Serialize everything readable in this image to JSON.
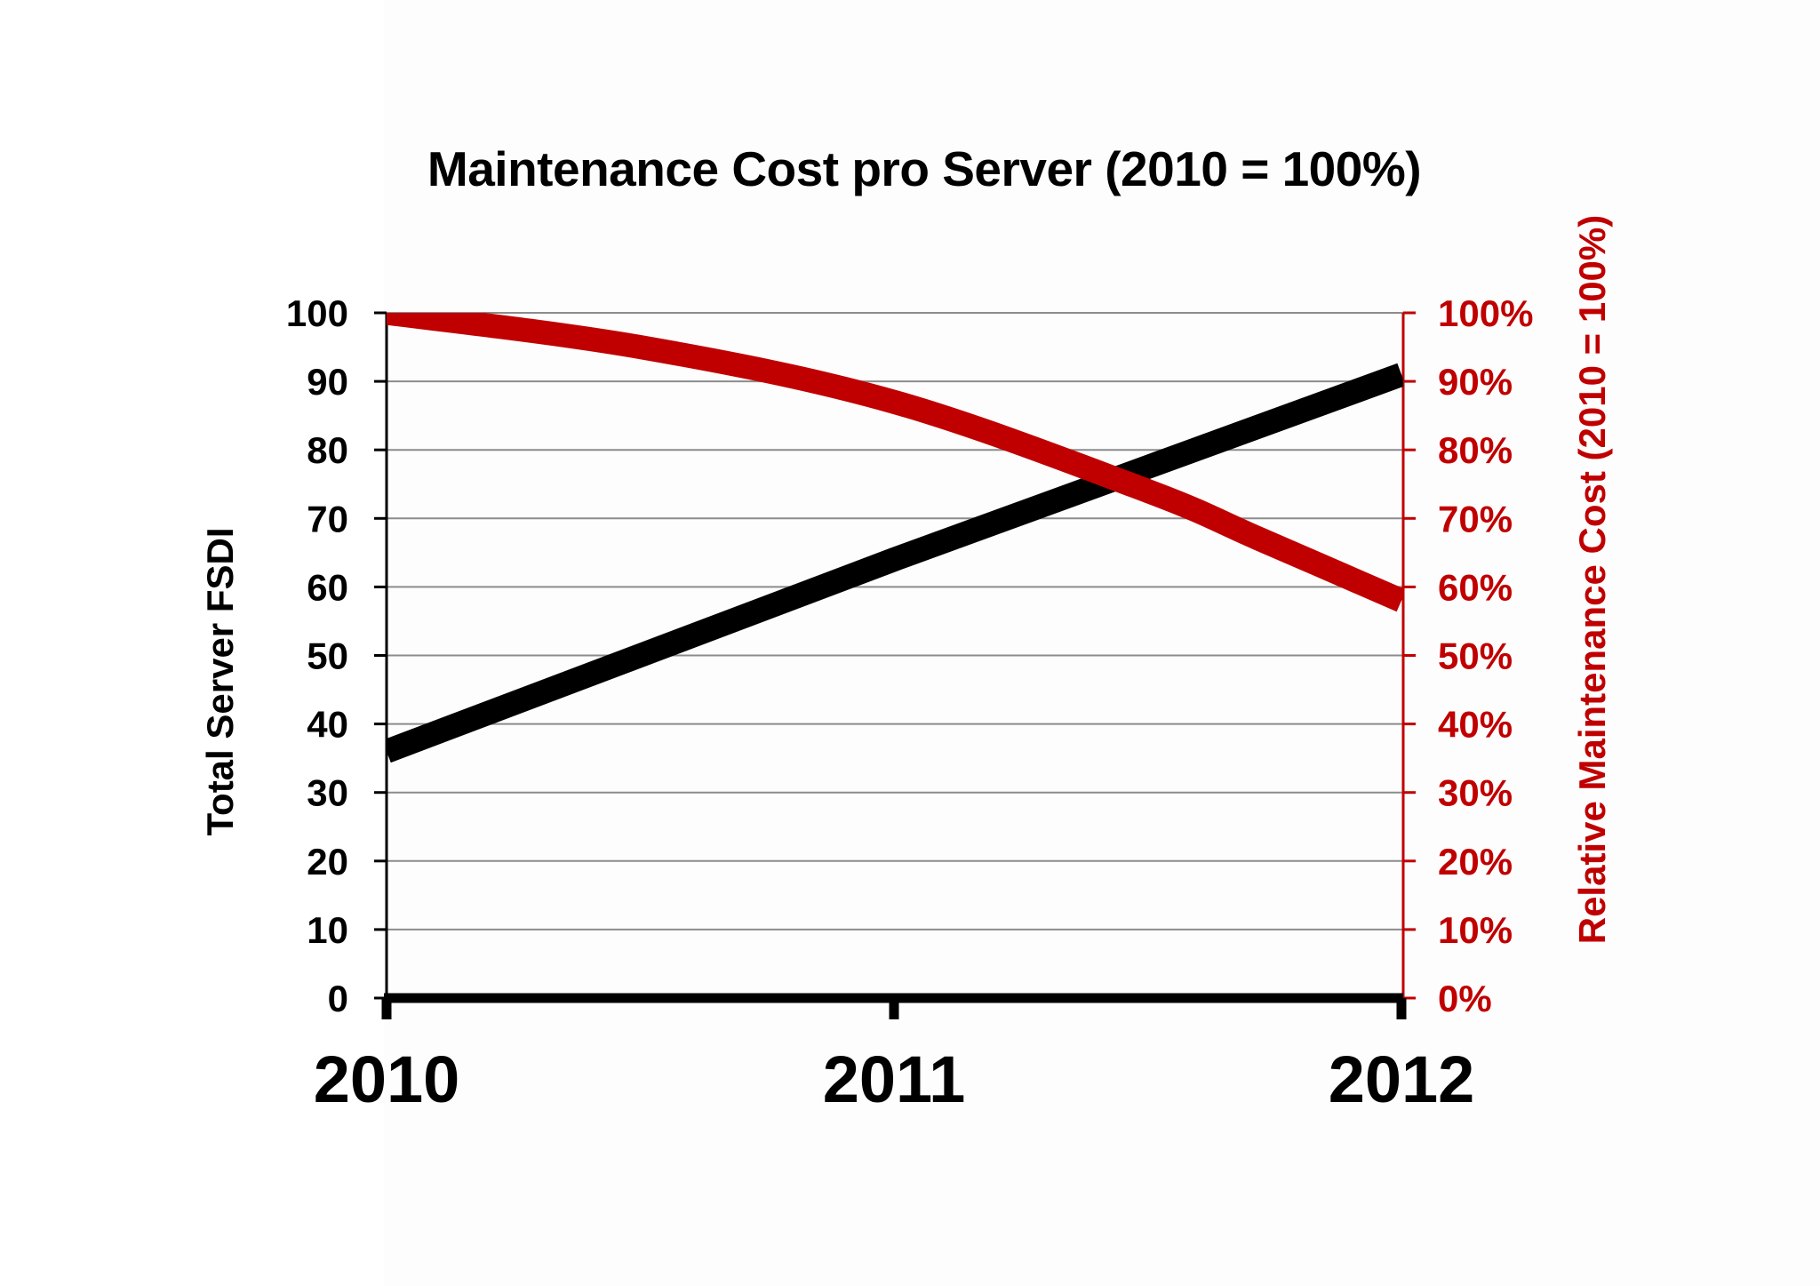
{
  "title": "Maintenance Cost pro Server (2010 = 100%)",
  "colors": {
    "primary_series": "#000000",
    "secondary_series": "#c00000",
    "gridline": "#8c8c8c",
    "background": "#ffffff"
  },
  "axes": {
    "left": {
      "label": "Total Server FSDI",
      "ticks": [
        "0",
        "10",
        "20",
        "30",
        "40",
        "50",
        "60",
        "70",
        "80",
        "90",
        "100"
      ]
    },
    "right": {
      "label": "Relative Maintenance Cost (2010 = 100%)",
      "ticks": [
        "0%",
        "10%",
        "20%",
        "30%",
        "40%",
        "50%",
        "60%",
        "70%",
        "80%",
        "90%",
        "100%"
      ]
    },
    "x": {
      "ticks": [
        "2010",
        "2011",
        "2012"
      ]
    }
  },
  "chart_data": {
    "type": "line",
    "title": "Maintenance Cost pro Server (2010 = 100%)",
    "x": [
      "2010",
      "2011",
      "2012"
    ],
    "xlabel": "",
    "ylabel": "Total Server FSDI",
    "ylabel_right": "Relative Maintenance Cost (2010 = 100%)",
    "ylim": [
      0,
      100
    ],
    "ylim_right": [
      0,
      1.0
    ],
    "grid": true,
    "legend": null,
    "series": [
      {
        "name": "Total Server FSDI",
        "axis": "left",
        "color": "#000000",
        "values": [
          36,
          64,
          91
        ]
      },
      {
        "name": "Relative Maintenance Cost",
        "axis": "right",
        "color": "#c00000",
        "values": [
          1.0,
          0.87,
          0.58
        ],
        "detail_points": [
          {
            "x": 2010.0,
            "y": 1.0
          },
          {
            "x": 2010.5,
            "y": 0.95
          },
          {
            "x": 2011.0,
            "y": 0.87
          },
          {
            "x": 2011.5,
            "y": 0.74
          },
          {
            "x": 2011.72,
            "y": 0.67
          },
          {
            "x": 2012.0,
            "y": 0.58
          }
        ]
      }
    ]
  }
}
